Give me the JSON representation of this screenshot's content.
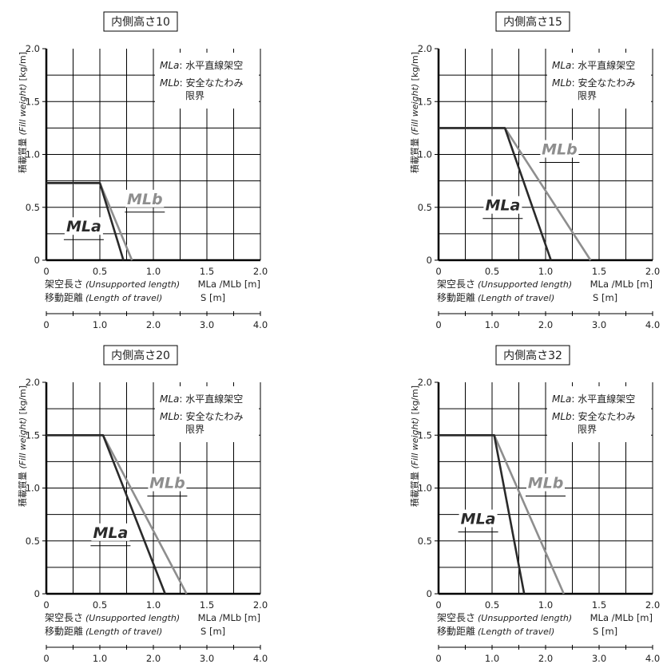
{
  "colors": {
    "mla": "#2a2a2a",
    "mlb": "#8e8e8e",
    "grid": "#000000",
    "text": "#222222"
  },
  "shared": {
    "y_label_jp": "積載質量",
    "y_label_en": "(Fill weight)",
    "y_label_unit": "[kg/m]",
    "x1_label_jp": "架空長さ",
    "x1_label_en": "(Unsupported length)",
    "x1_label_unit": "MLa /MLb [m]",
    "x2_label_jp": "移動距離",
    "x2_label_en": "(Length of travel)",
    "x2_label_unit": "S [m]",
    "legend": [
      {
        "key": "MLa",
        "sep": ":",
        "lines": [
          "水平直線架空"
        ]
      },
      {
        "key": "MLb",
        "sep": ":",
        "lines": [
          "安全なたわみ",
          "限界"
        ]
      }
    ],
    "y_ticks": [
      "0",
      "0.5",
      "1.0",
      "1.5",
      "2.0"
    ],
    "x1_ticks": [
      "0",
      "0.5",
      "1.0",
      "1.5",
      "2.0"
    ],
    "x2_ticks": [
      "0",
      "1.0",
      "2.0",
      "3.0",
      "4.0"
    ]
  },
  "chart_data": [
    {
      "type": "line",
      "title": "内側高さ10",
      "xlabel": "MLa /MLb [m]",
      "ylabel": "[kg/m]",
      "xlim": [
        0,
        2.0
      ],
      "ylim": [
        0,
        2.0
      ],
      "secondary_xlim": [
        0,
        4.0
      ],
      "series": [
        {
          "name": "MLa",
          "x": [
            0,
            0.5,
            0.72
          ],
          "y": [
            0.73,
            0.73,
            0
          ]
        },
        {
          "name": "MLb",
          "x": [
            0,
            0.5,
            0.8
          ],
          "y": [
            0.73,
            0.73,
            0
          ]
        }
      ],
      "annotations": [
        {
          "text": "MLa",
          "series": "MLa",
          "x": 0.35,
          "y": 0.27
        },
        {
          "text": "MLb",
          "series": "MLb",
          "x": 0.92,
          "y": 0.53
        }
      ]
    },
    {
      "type": "line",
      "title": "内側高さ15",
      "xlabel": "MLa /MLb [m]",
      "ylabel": "[kg/m]",
      "xlim": [
        0,
        2.0
      ],
      "ylim": [
        0,
        2.0
      ],
      "secondary_xlim": [
        0,
        4.0
      ],
      "series": [
        {
          "name": "MLa",
          "x": [
            0,
            0.62,
            1.05
          ],
          "y": [
            1.25,
            1.25,
            0
          ]
        },
        {
          "name": "MLb",
          "x": [
            0,
            0.62,
            1.42
          ],
          "y": [
            1.25,
            1.25,
            0
          ]
        }
      ],
      "annotations": [
        {
          "text": "MLa",
          "series": "MLa",
          "x": 0.6,
          "y": 0.47
        },
        {
          "text": "MLb",
          "series": "MLb",
          "x": 1.13,
          "y": 1.0
        }
      ]
    },
    {
      "type": "line",
      "title": "内側高さ20",
      "xlabel": "MLa /MLb [m]",
      "ylabel": "[kg/m]",
      "xlim": [
        0,
        2.0
      ],
      "ylim": [
        0,
        2.0
      ],
      "secondary_xlim": [
        0,
        4.0
      ],
      "series": [
        {
          "name": "MLa",
          "x": [
            0,
            0.53,
            1.11
          ],
          "y": [
            1.5,
            1.5,
            0
          ]
        },
        {
          "name": "MLb",
          "x": [
            0,
            0.53,
            1.31
          ],
          "y": [
            1.5,
            1.5,
            0
          ]
        }
      ],
      "annotations": [
        {
          "text": "MLa",
          "series": "MLa",
          "x": 0.6,
          "y": 0.53
        },
        {
          "text": "MLb",
          "series": "MLb",
          "x": 1.13,
          "y": 1.0
        }
      ]
    },
    {
      "type": "line",
      "title": "内側高さ32",
      "xlabel": "MLa /MLb [m]",
      "ylabel": "[kg/m]",
      "xlim": [
        0,
        2.0
      ],
      "ylim": [
        0,
        2.0
      ],
      "secondary_xlim": [
        0,
        4.0
      ],
      "series": [
        {
          "name": "MLa",
          "x": [
            0,
            0.52,
            0.8
          ],
          "y": [
            1.5,
            1.5,
            0
          ]
        },
        {
          "name": "MLb",
          "x": [
            0,
            0.52,
            1.17
          ],
          "y": [
            1.5,
            1.5,
            0
          ]
        }
      ],
      "annotations": [
        {
          "text": "MLa",
          "series": "MLa",
          "x": 0.37,
          "y": 0.66
        },
        {
          "text": "MLb",
          "series": "MLb",
          "x": 1.0,
          "y": 1.0
        }
      ]
    }
  ]
}
